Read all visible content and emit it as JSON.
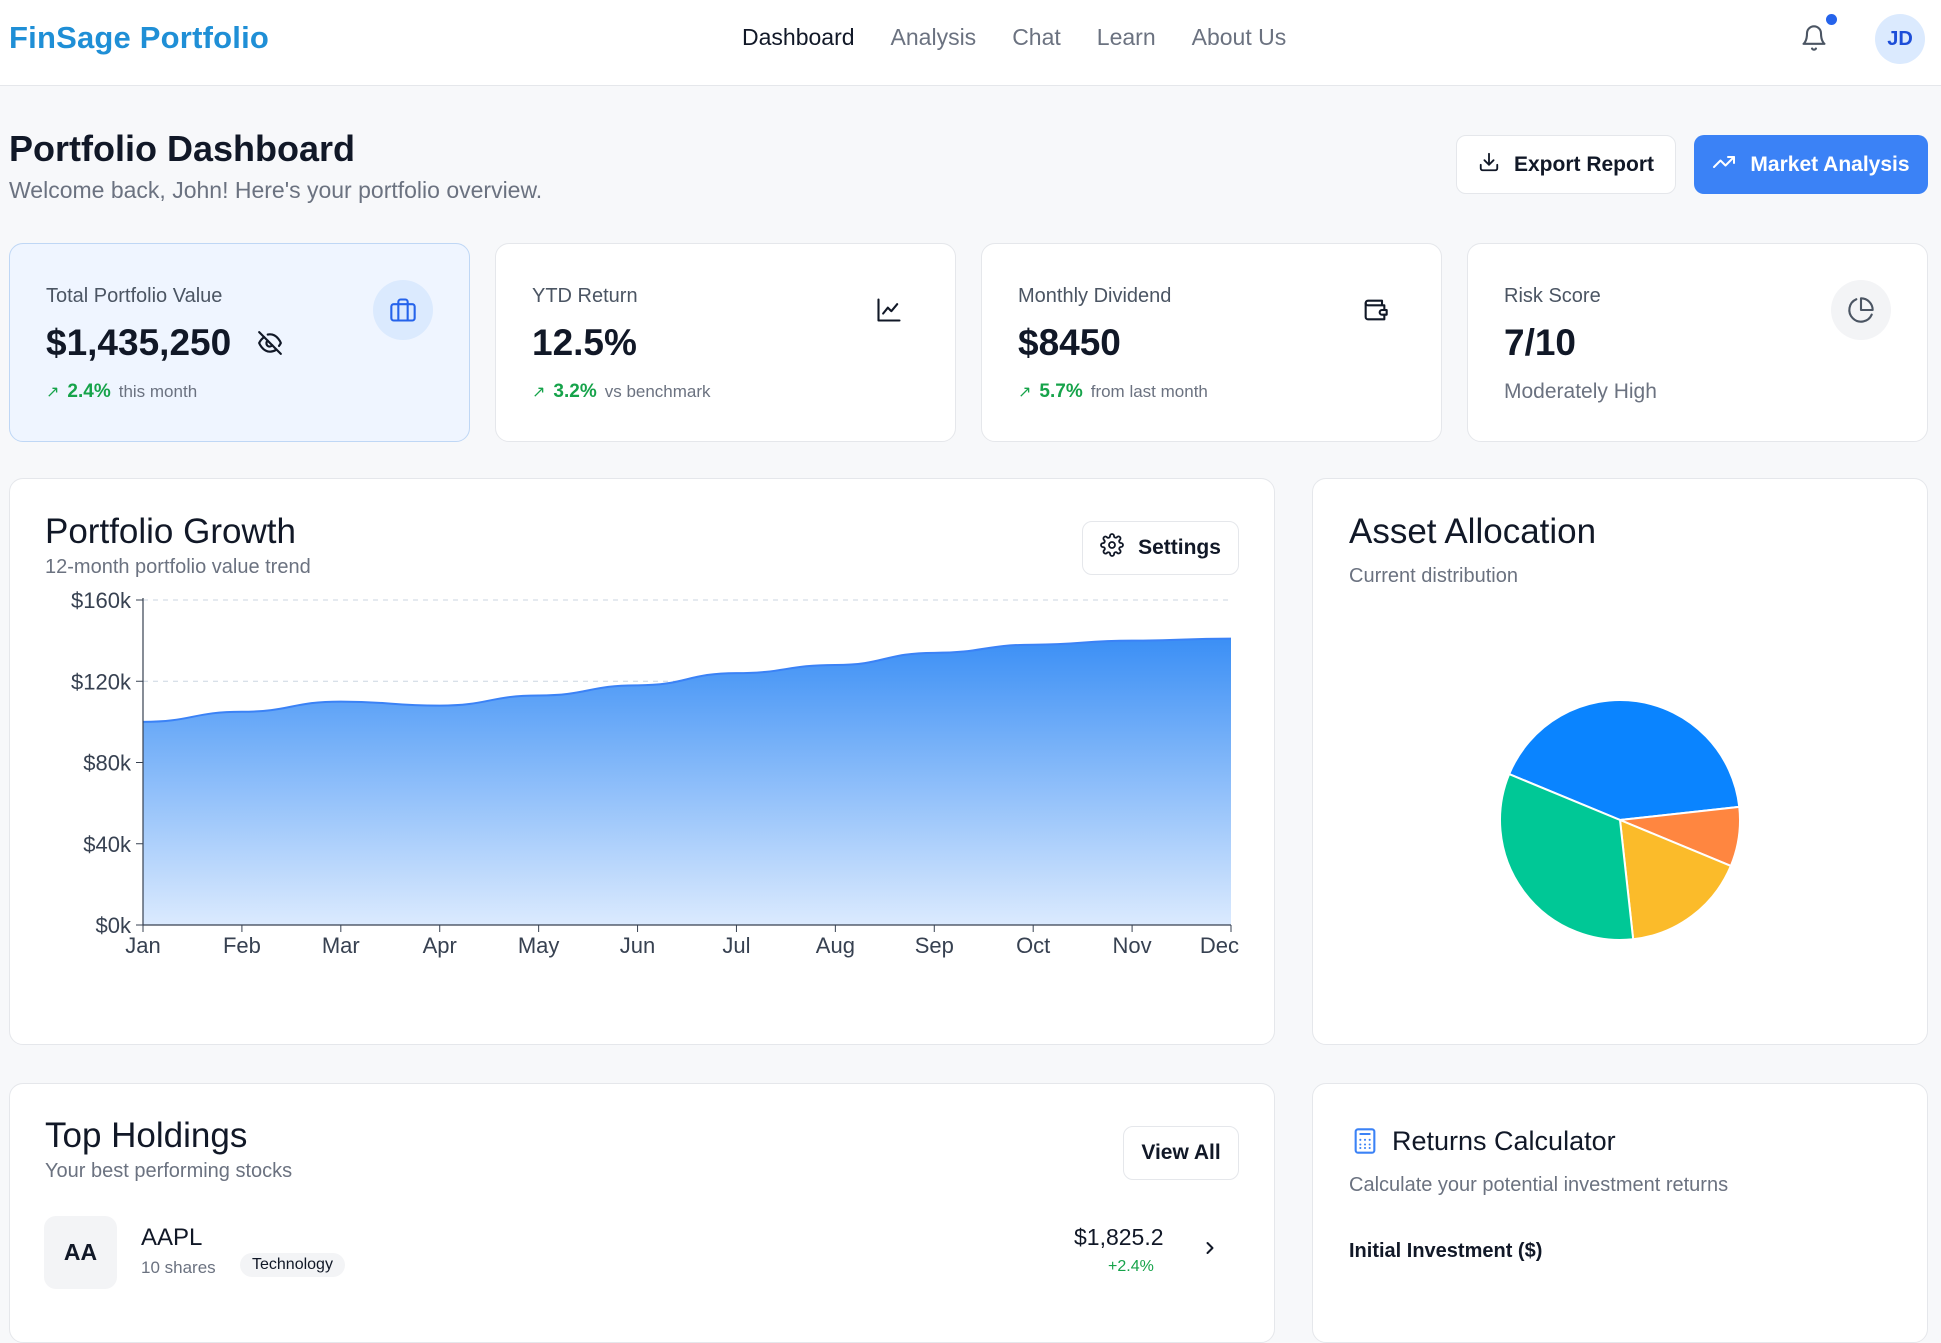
{
  "nav": {
    "brand": "FinSage Portfolio",
    "links": [
      "Dashboard",
      "Analysis",
      "Chat",
      "Learn",
      "About Us"
    ],
    "active": "Dashboard",
    "avatar_initials": "JD"
  },
  "header": {
    "title": "Portfolio Dashboard",
    "subtitle": "Welcome back, John! Here's your portfolio overview.",
    "export_label": "Export Report",
    "market_label": "Market Analysis"
  },
  "stats": [
    {
      "label": "Total Portfolio Value",
      "value": "$1,435,250",
      "change": "2.4%",
      "note": "this month",
      "icon": "briefcase-icon"
    },
    {
      "label": "YTD Return",
      "value": "12.5%",
      "change": "3.2%",
      "note": "vs benchmark",
      "icon": "line-chart-icon"
    },
    {
      "label": "Monthly Dividend",
      "value": "$8450",
      "change": "5.7%",
      "note": "from last month",
      "icon": "wallet-icon"
    },
    {
      "label": "Risk Score",
      "value": "7/10",
      "subtext": "Moderately High",
      "icon": "pie-chart-icon"
    }
  ],
  "growth": {
    "title": "Portfolio Growth",
    "subtitle": "12-month portfolio value trend",
    "settings_label": "Settings"
  },
  "allocation": {
    "title": "Asset Allocation",
    "subtitle": "Current distribution"
  },
  "holdings": {
    "title": "Top Holdings",
    "subtitle": "Your best performing stocks",
    "view_all_label": "View All",
    "items": [
      {
        "badge": "AA",
        "ticker": "AAPL",
        "shares": "10 shares",
        "sector": "Technology",
        "price": "$1,825.2",
        "change": "+2.4%"
      }
    ]
  },
  "calculator": {
    "title": "Returns Calculator",
    "subtitle": "Calculate your potential investment returns",
    "field_label": "Initial Investment ($)"
  },
  "colors": {
    "accent": "#3b82f6",
    "brand": "#1f8fd6",
    "positive": "#16a34a",
    "area_top": "#3b8ff5",
    "area_bottom": "#dbeafe"
  },
  "chart_data": [
    {
      "type": "area",
      "x": [
        "Jan",
        "Feb",
        "Mar",
        "Apr",
        "May",
        "Jun",
        "Jul",
        "Aug",
        "Sep",
        "Oct",
        "Nov",
        "Dec"
      ],
      "series": [
        {
          "values": [
            100000,
            105000,
            110000,
            108000,
            113000,
            118000,
            124000,
            128000,
            134000,
            138000,
            140000,
            141000
          ]
        }
      ],
      "yticks": [
        "$0k",
        "$40k",
        "$80k",
        "$120k",
        "$160k"
      ],
      "ylim": [
        0,
        160000
      ],
      "grid": true
    },
    {
      "type": "pie",
      "slices": [
        {
          "value": 42,
          "color": "#0a84ff"
        },
        {
          "value": 8,
          "color": "#ff8640"
        },
        {
          "value": 17,
          "color": "#fbbb2a"
        },
        {
          "value": 33,
          "color": "#00c896"
        }
      ]
    }
  ]
}
